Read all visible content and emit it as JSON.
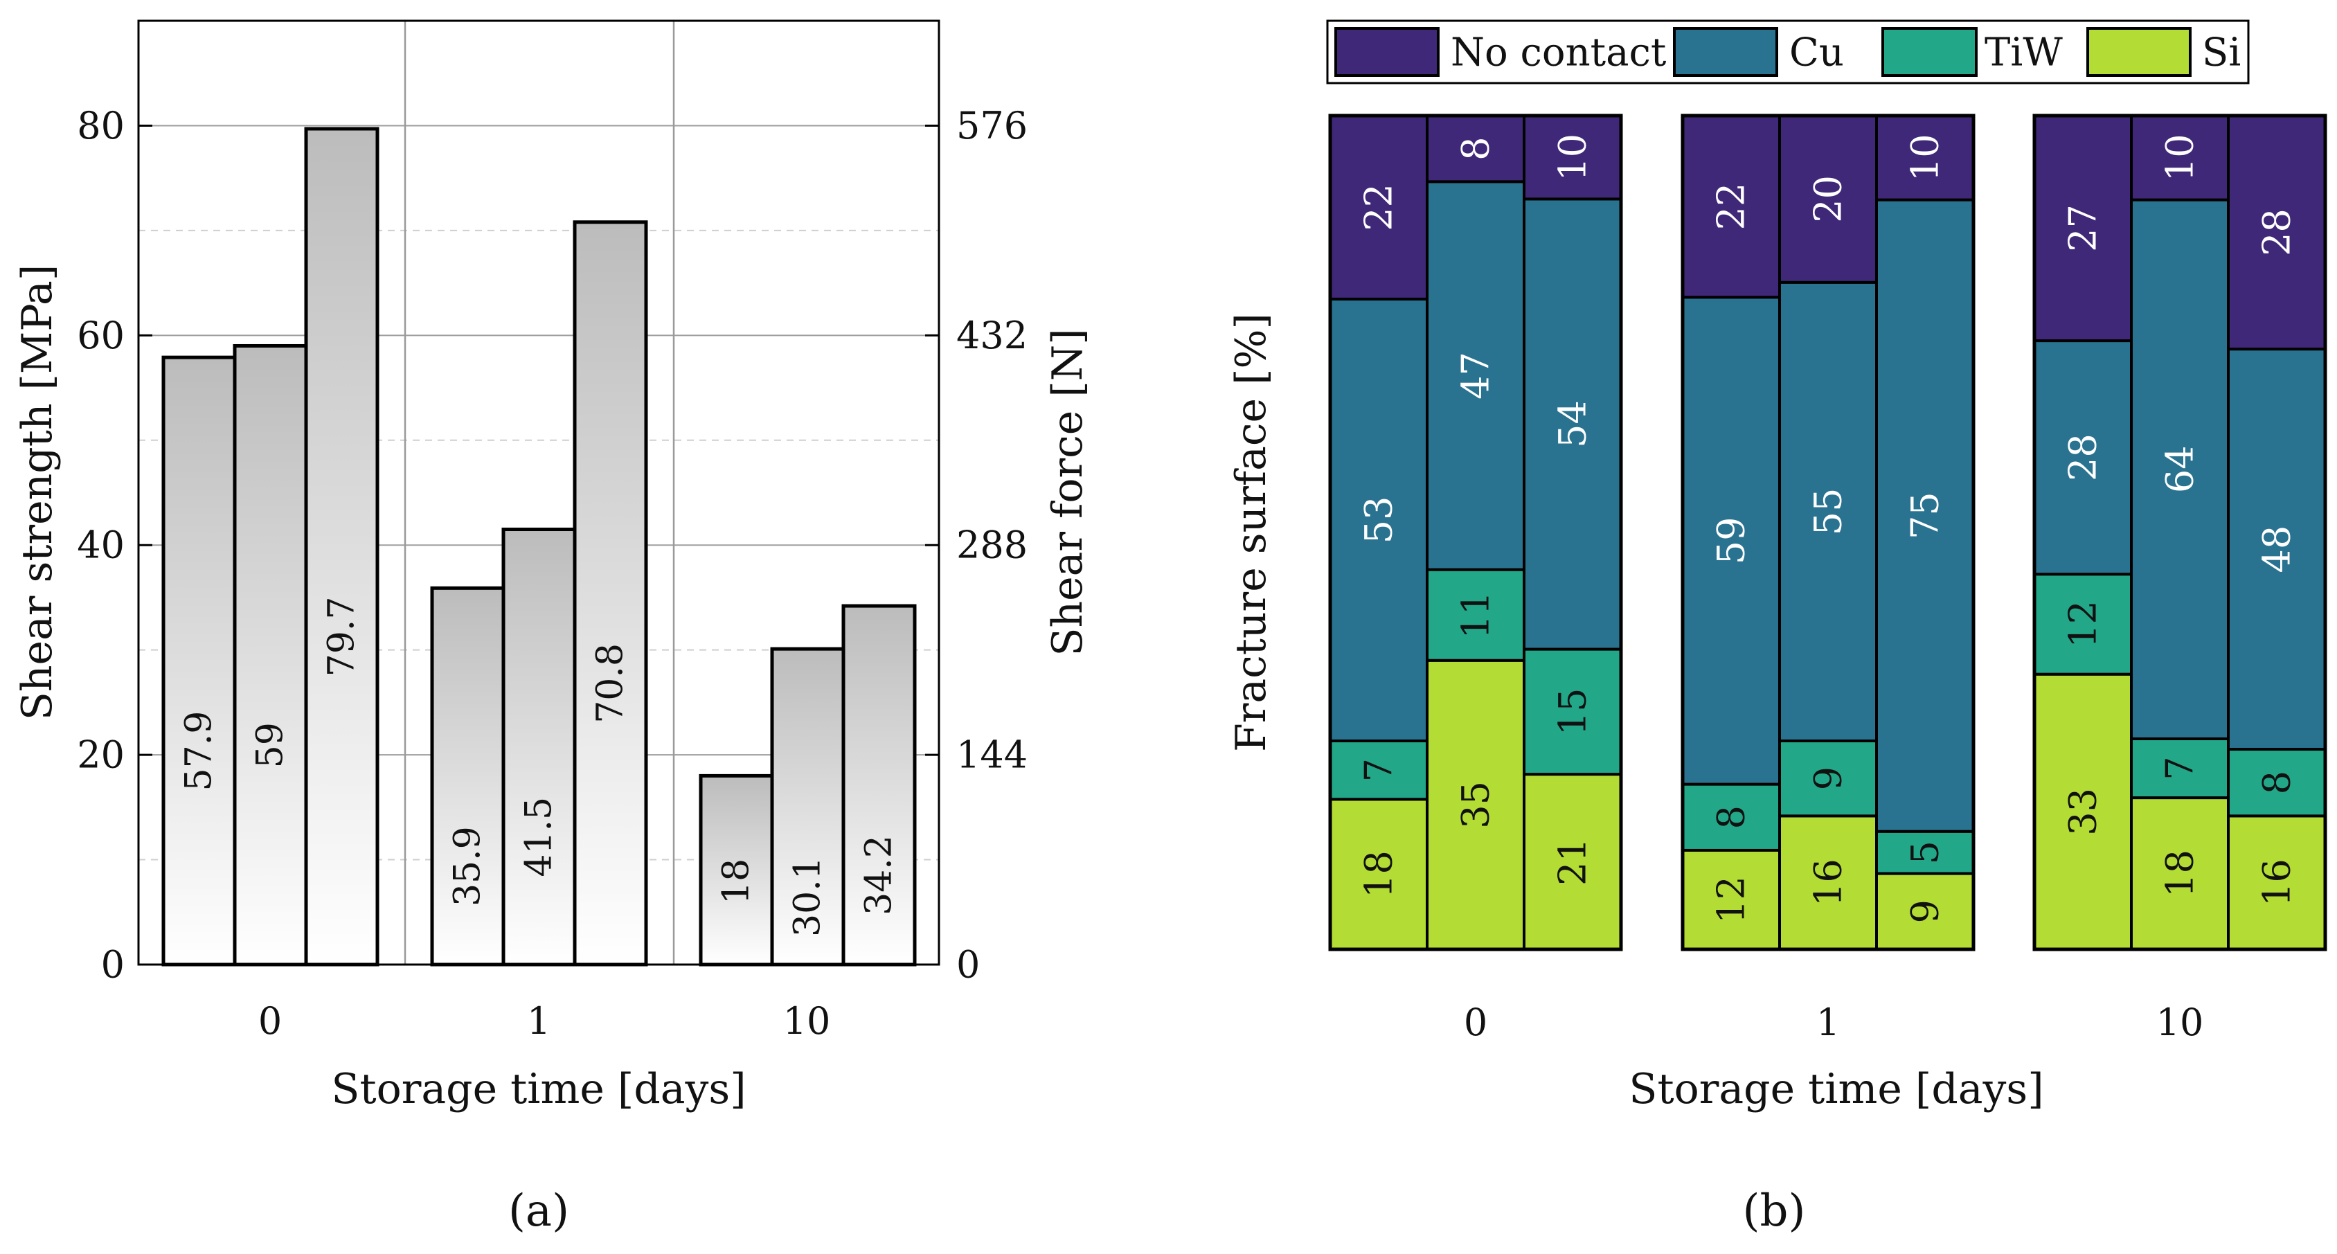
{
  "colors": {
    "no_contact": "#3f2878",
    "cu": "#2a7390",
    "tiw": "#22a889",
    "si": "#b3dc34",
    "bar_top": "#bcbcbc",
    "bar_bottom": "#ffffff"
  },
  "chart_data": [
    {
      "type": "bar",
      "panel_label": "(a)",
      "xlabel": "Storage time [days]",
      "ylabel": "Shear strength [MPa]",
      "y2label": "Shear force [N]",
      "ylim": [
        0,
        90
      ],
      "y2lim": [
        0,
        648
      ],
      "yticks": [
        0,
        20,
        40,
        60,
        80
      ],
      "y2ticks": [
        0,
        144,
        288,
        432,
        576
      ],
      "grid": true,
      "categories": [
        "0",
        "1",
        "10"
      ],
      "values": [
        [
          57.9,
          59,
          79.7
        ],
        [
          35.9,
          41.5,
          70.8
        ],
        [
          18,
          30.1,
          34.2
        ]
      ],
      "value_labels": [
        [
          "57.9",
          "59",
          "79.7"
        ],
        [
          "35.9",
          "41.5",
          "70.8"
        ],
        [
          "18",
          "30.1",
          "34.2"
        ]
      ]
    },
    {
      "type": "bar",
      "stacked": true,
      "panel_label": "(b)",
      "xlabel": "Storage time [days]",
      "ylabel": "Fracture surface [%]",
      "ylim": [
        0,
        100
      ],
      "legend_position": "top",
      "series_order": [
        "Si",
        "TiW",
        "Cu",
        "No contact"
      ],
      "legend": [
        "No contact",
        "Cu",
        "TiW",
        "Si"
      ],
      "categories": [
        "0",
        "1",
        "10"
      ],
      "groups": [
        [
          {
            "Si": 18,
            "TiW": 7,
            "Cu": 53,
            "No contact": 22
          },
          {
            "Si": 35,
            "TiW": 11,
            "Cu": 47,
            "No contact": 8
          },
          {
            "Si": 21,
            "TiW": 15,
            "Cu": 54,
            "No contact": 10
          }
        ],
        [
          {
            "Si": 12,
            "TiW": 8,
            "Cu": 59,
            "No contact": 22
          },
          {
            "Si": 16,
            "TiW": 9,
            "Cu": 55,
            "No contact": 20
          },
          {
            "Si": 9,
            "TiW": 5,
            "Cu": 75,
            "No contact": 10
          }
        ],
        [
          {
            "Si": 33,
            "TiW": 12,
            "Cu": 28,
            "No contact": 27
          },
          {
            "Si": 18,
            "TiW": 7,
            "Cu": 64,
            "No contact": 10
          },
          {
            "Si": 16,
            "TiW": 8,
            "Cu": 48,
            "No contact": 28
          }
        ]
      ]
    }
  ]
}
